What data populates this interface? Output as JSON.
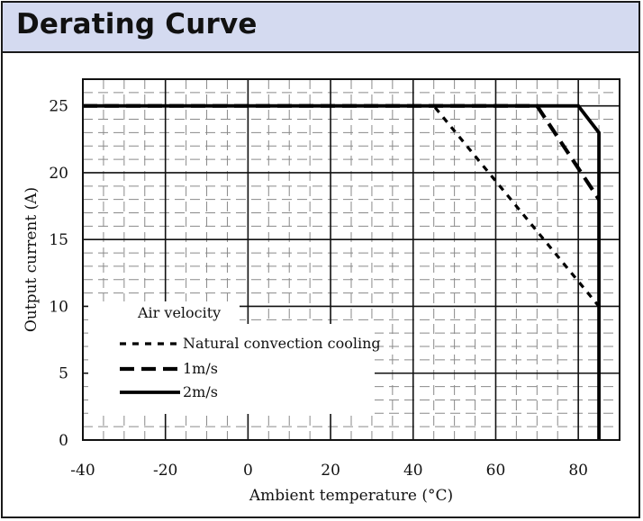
{
  "header": {
    "title": "Derating Curve"
  },
  "chart_data": {
    "type": "line",
    "title": "",
    "xlabel": "Ambient temperature (°C)",
    "ylabel": "Output current (A)",
    "xlim": [
      -40,
      90
    ],
    "ylim": [
      0,
      27
    ],
    "x_ticks": [
      -40,
      -20,
      0,
      20,
      40,
      60,
      80
    ],
    "x_tick_labels": [
      "-40",
      "-20",
      "0",
      "20",
      "40",
      "60",
      "80"
    ],
    "y_ticks": [
      0,
      5,
      10,
      15,
      20,
      25
    ],
    "y_tick_labels": [
      "0",
      "5",
      "10",
      "15",
      "20",
      "25"
    ],
    "grid": true,
    "legend": {
      "title": "Air velocity",
      "placement": "bottom-left"
    },
    "series": [
      {
        "name": "Natural convection cooling",
        "style": "short-dash",
        "x": [
          -40,
          45,
          85
        ],
        "y": [
          25,
          25,
          10
        ]
      },
      {
        "name": "1m/s",
        "style": "long-dash",
        "x": [
          -40,
          70,
          85
        ],
        "y": [
          25,
          25,
          18
        ]
      },
      {
        "name": "2m/s",
        "style": "solid",
        "x": [
          -40,
          80,
          85,
          85
        ],
        "y": [
          25,
          25,
          23,
          0
        ]
      }
    ]
  }
}
